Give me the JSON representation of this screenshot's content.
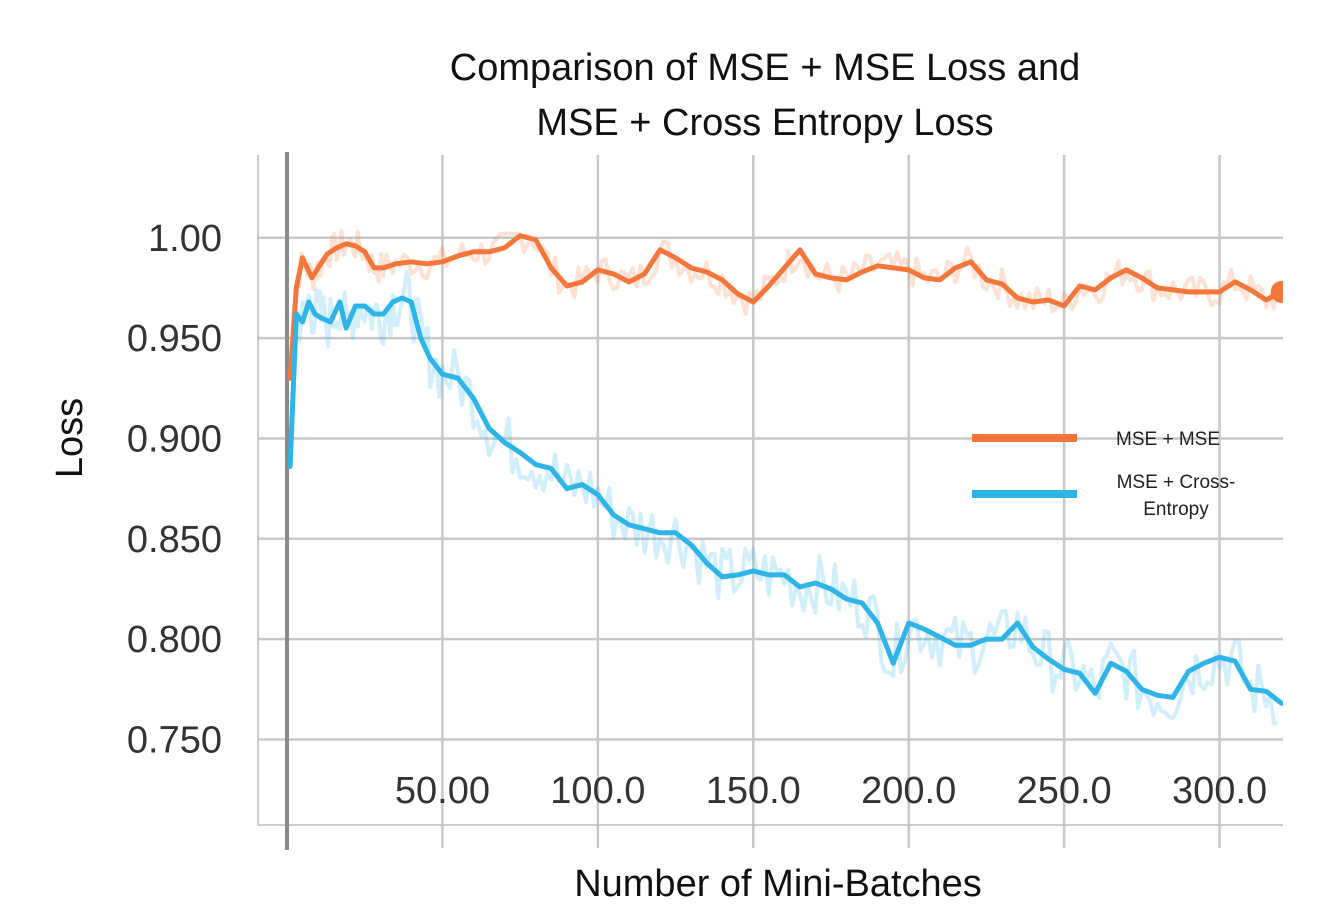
{
  "chart_data": {
    "type": "line",
    "title_lines": [
      "Comparison of MSE + MSE Loss and",
      "MSE + Cross Entropy Loss"
    ],
    "xlabel": "Number of Mini-Batches",
    "ylabel": "Loss",
    "xlim": [
      0,
      320
    ],
    "ylim": [
      0.71,
      1.04
    ],
    "x_tick_values": [
      50,
      100,
      150,
      200,
      250,
      300
    ],
    "x_tick_labels": [
      "50.00",
      "100.0",
      "150.0",
      "200.0",
      "250.0",
      "300.0"
    ],
    "y_tick_values": [
      0.75,
      0.8,
      0.85,
      0.9,
      0.95,
      1.0
    ],
    "y_tick_labels": [
      "0.750",
      "0.800",
      "0.850",
      "0.900",
      "0.950",
      "1.00"
    ],
    "grid": true,
    "legend_position": "right",
    "series": [
      {
        "name": "MSE + MSE",
        "legend_lines": [
          "MSE + MSE"
        ],
        "color": "#f4763a",
        "x": [
          1,
          3,
          5,
          8,
          10,
          13,
          16,
          19,
          22,
          25,
          28,
          31,
          35,
          40,
          45,
          50,
          55,
          60,
          65,
          70,
          75,
          80,
          85,
          90,
          95,
          100,
          105,
          110,
          115,
          120,
          125,
          130,
          135,
          140,
          145,
          150,
          155,
          160,
          165,
          170,
          175,
          180,
          185,
          190,
          195,
          200,
          205,
          210,
          215,
          220,
          225,
          230,
          235,
          240,
          245,
          250,
          255,
          260,
          265,
          270,
          275,
          280,
          285,
          290,
          295,
          300,
          305,
          310,
          315,
          320
        ],
        "y": [
          0.93,
          0.975,
          0.99,
          0.98,
          0.985,
          0.992,
          0.995,
          0.997,
          0.996,
          0.993,
          0.985,
          0.985,
          0.987,
          0.988,
          0.987,
          0.988,
          0.991,
          0.993,
          0.993,
          0.995,
          1.001,
          0.999,
          0.985,
          0.976,
          0.978,
          0.984,
          0.982,
          0.978,
          0.982,
          0.994,
          0.99,
          0.985,
          0.983,
          0.979,
          0.972,
          0.968,
          0.976,
          0.985,
          0.994,
          0.982,
          0.98,
          0.979,
          0.983,
          0.986,
          0.985,
          0.984,
          0.98,
          0.979,
          0.985,
          0.988,
          0.979,
          0.977,
          0.97,
          0.968,
          0.969,
          0.966,
          0.976,
          0.974,
          0.98,
          0.984,
          0.98,
          0.975,
          0.974,
          0.973,
          0.973,
          0.973,
          0.978,
          0.974,
          0.969,
          0.973
        ]
      },
      {
        "name": "MSE + Cross-Entropy",
        "legend_lines": [
          "MSE + Cross-",
          "Entropy"
        ],
        "color": "#2eb4e8",
        "x": [
          1,
          3,
          5,
          7,
          9,
          11,
          14,
          17,
          19,
          22,
          25,
          28,
          31,
          34,
          37,
          40,
          43,
          46,
          50,
          55,
          60,
          65,
          70,
          75,
          80,
          85,
          90,
          95,
          100,
          105,
          110,
          115,
          120,
          125,
          130,
          135,
          140,
          145,
          150,
          155,
          160,
          165,
          170,
          175,
          180,
          185,
          190,
          195,
          200,
          205,
          210,
          215,
          220,
          225,
          230,
          235,
          240,
          245,
          250,
          255,
          260,
          265,
          270,
          275,
          280,
          285,
          290,
          295,
          300,
          305,
          310,
          315,
          320
        ],
        "y": [
          0.886,
          0.962,
          0.958,
          0.968,
          0.962,
          0.96,
          0.958,
          0.968,
          0.955,
          0.966,
          0.966,
          0.962,
          0.962,
          0.968,
          0.97,
          0.968,
          0.95,
          0.94,
          0.932,
          0.93,
          0.92,
          0.905,
          0.898,
          0.893,
          0.887,
          0.885,
          0.875,
          0.877,
          0.872,
          0.862,
          0.857,
          0.855,
          0.853,
          0.853,
          0.847,
          0.838,
          0.831,
          0.832,
          0.834,
          0.832,
          0.832,
          0.826,
          0.828,
          0.825,
          0.82,
          0.818,
          0.808,
          0.788,
          0.808,
          0.805,
          0.801,
          0.797,
          0.797,
          0.8,
          0.8,
          0.808,
          0.796,
          0.79,
          0.785,
          0.783,
          0.773,
          0.788,
          0.784,
          0.775,
          0.772,
          0.771,
          0.784,
          0.788,
          0.791,
          0.789,
          0.775,
          0.774,
          0.768
        ]
      }
    ]
  }
}
